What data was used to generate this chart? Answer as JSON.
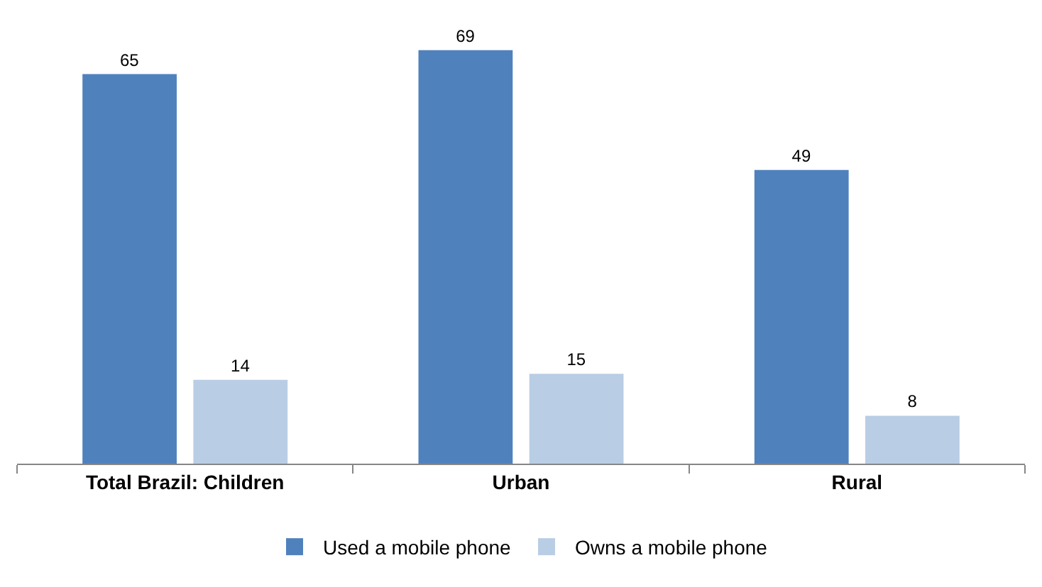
{
  "chart_data": {
    "type": "bar",
    "categories": [
      "Total Brazil: Children",
      "Urban",
      "Rural"
    ],
    "series": [
      {
        "name": "Used a mobile phone",
        "color": "#4f81bd",
        "values": [
          65,
          69,
          49
        ]
      },
      {
        "name": "Owns a mobile phone",
        "color": "#b9cde5",
        "values": [
          14,
          15,
          8
        ]
      }
    ],
    "data_labels": true,
    "legend": "bottom",
    "grid": false,
    "tick_labels": "x"
  }
}
